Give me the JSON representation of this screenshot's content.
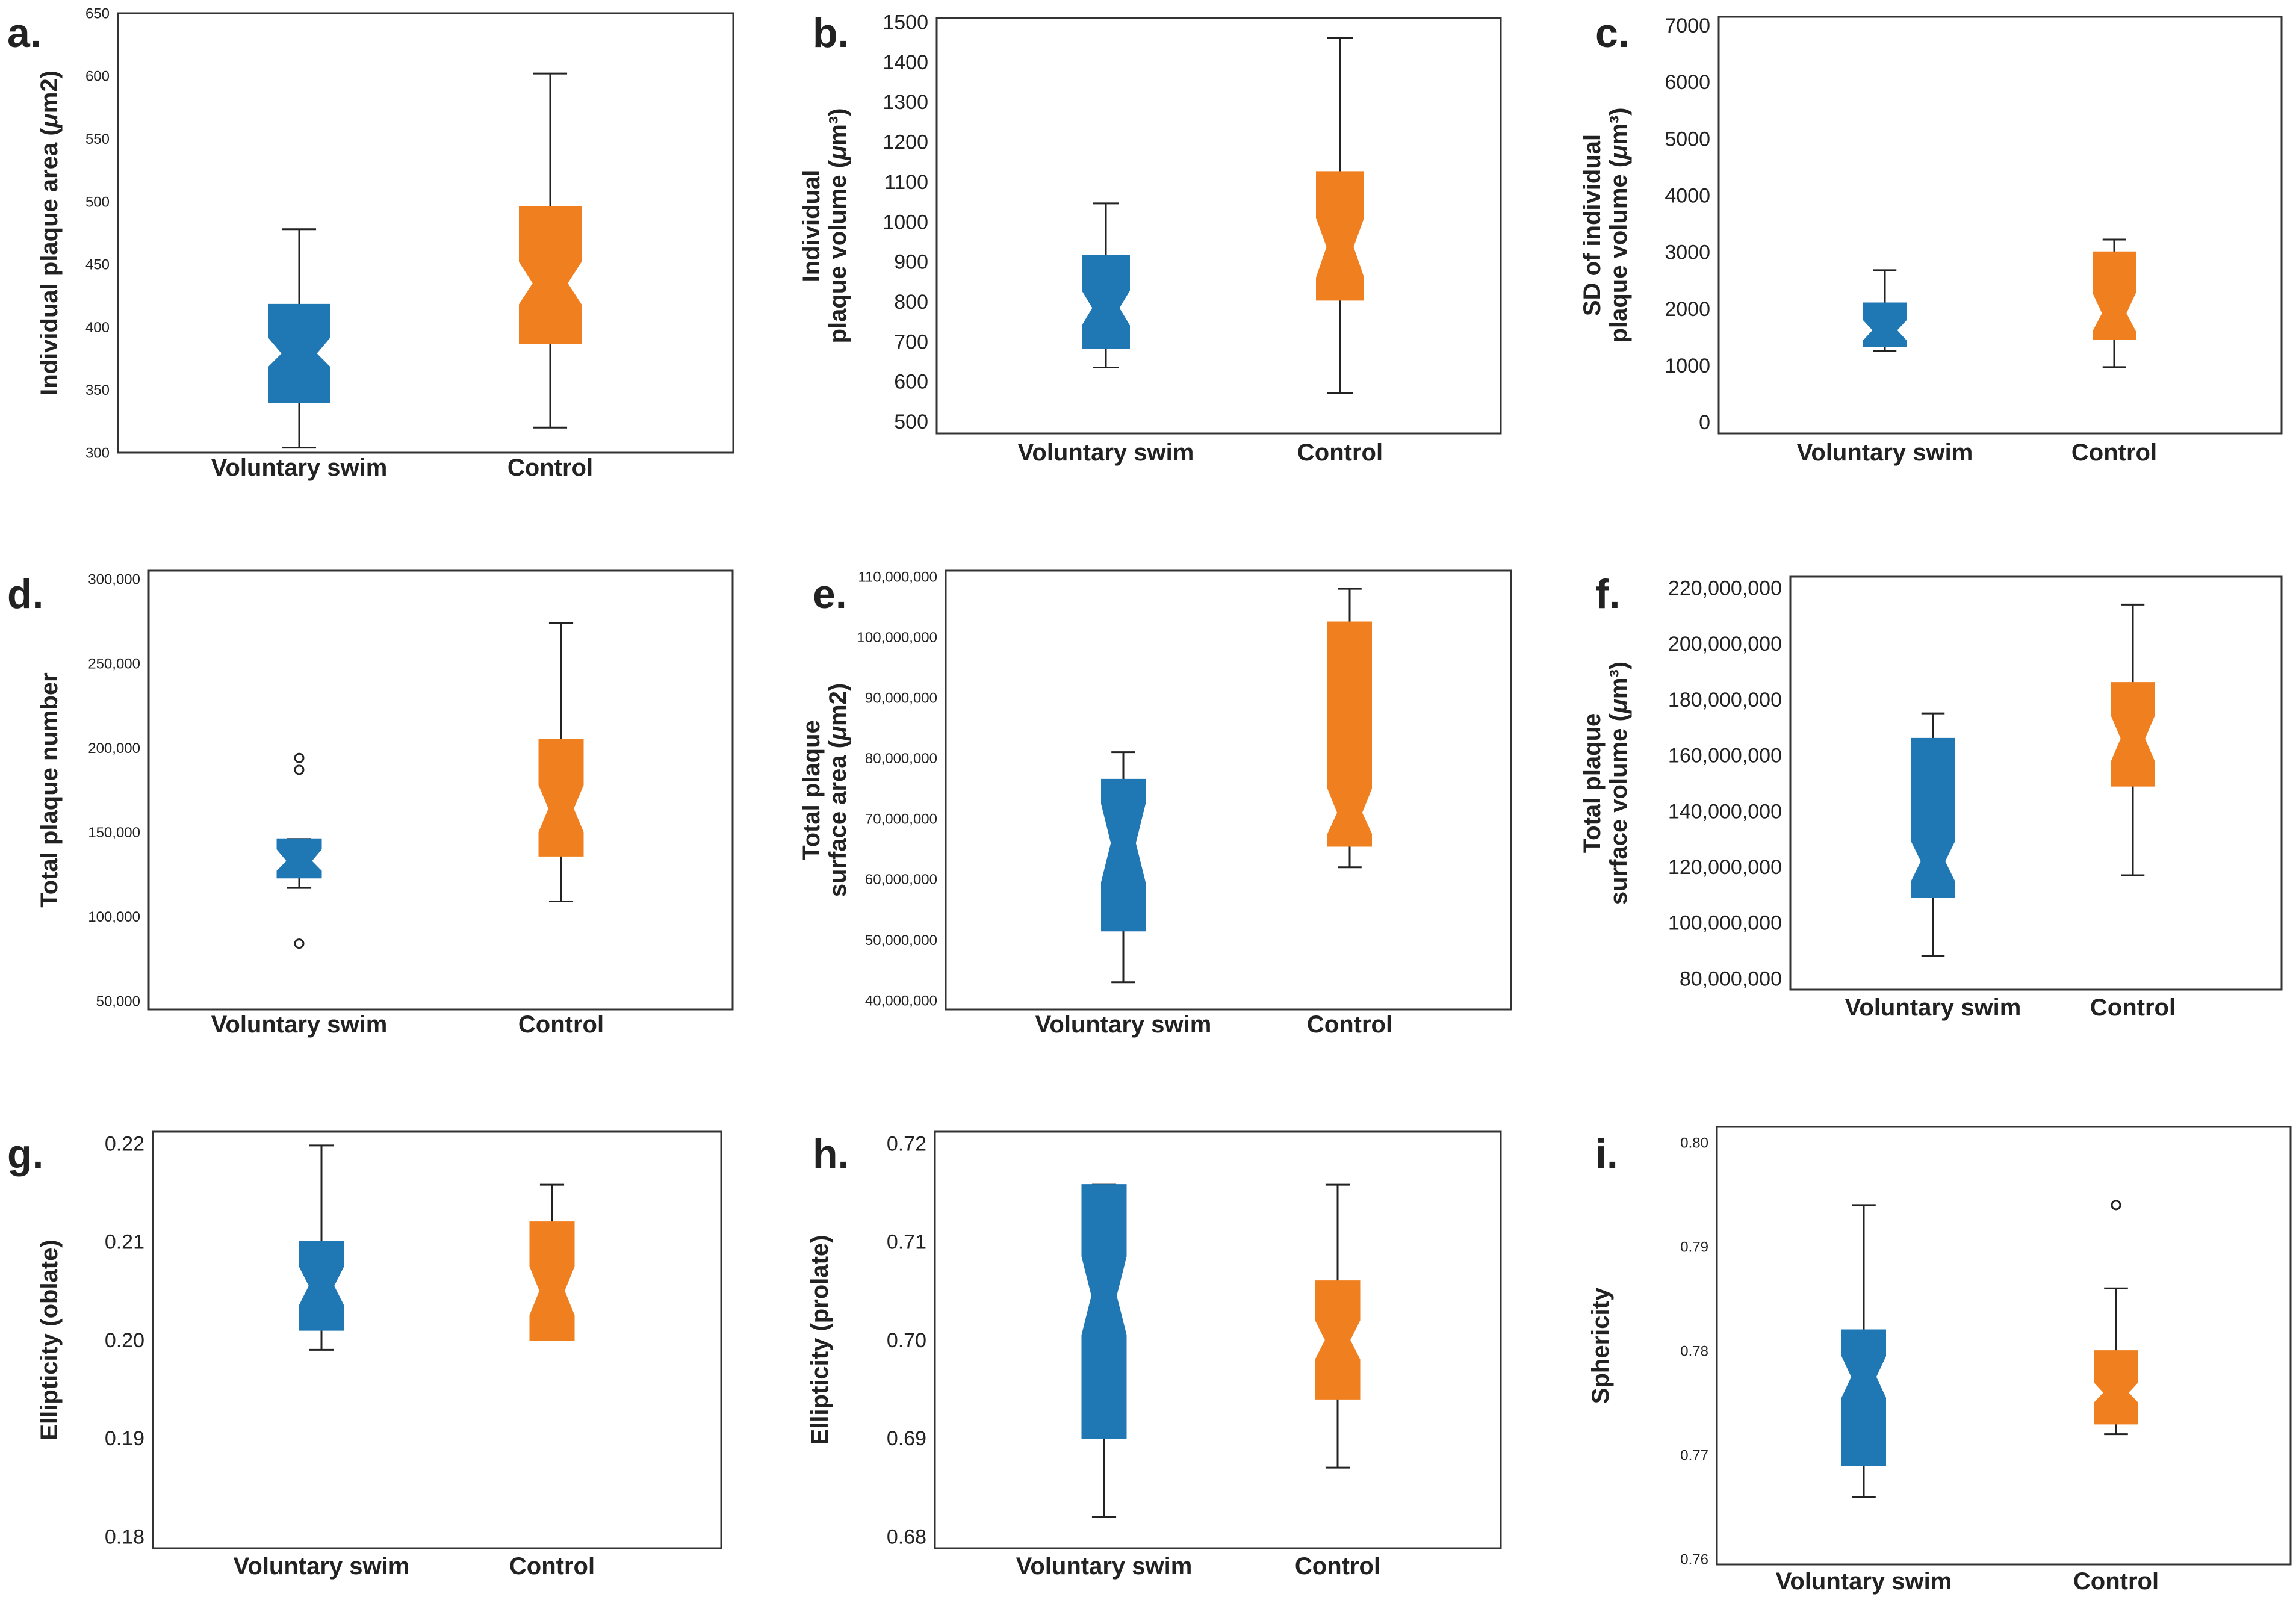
{
  "colors": {
    "voluntary_swim": "#1f77b4",
    "control": "#f07f1f",
    "frame": "#333333",
    "whisker": "#222222"
  },
  "chart_data": [
    {
      "panel": "a.",
      "type": "box",
      "ylabel": "Individual plaque area (μm2)",
      "ylim": [
        300,
        650
      ],
      "yticks": [
        300,
        350,
        400,
        450,
        500,
        550,
        600,
        650
      ],
      "categories": [
        "Voluntary swim",
        "Control"
      ],
      "series": [
        {
          "name": "Voluntary swim",
          "min": 304,
          "q1": 340,
          "median": 379,
          "q3": 418,
          "max": 478,
          "notch_lo": 368,
          "notch_hi": 392,
          "outliers": []
        },
        {
          "name": "Control",
          "min": 320,
          "q1": 387,
          "median": 435,
          "q3": 496,
          "max": 602,
          "notch_lo": 418,
          "notch_hi": 452,
          "outliers": []
        }
      ]
    },
    {
      "panel": "b.",
      "type": "box",
      "ylabel": "Individual plaque volume (μm³)",
      "ylim": [
        470,
        1510
      ],
      "yticks": [
        500,
        600,
        700,
        800,
        900,
        1000,
        1100,
        1200,
        1300,
        1400,
        1500
      ],
      "categories": [
        "Voluntary swim",
        "Control"
      ],
      "series": [
        {
          "name": "Voluntary swim",
          "min": 635,
          "q1": 683,
          "median": 784,
          "q3": 915,
          "max": 1046,
          "notch_lo": 740,
          "notch_hi": 828,
          "outliers": []
        },
        {
          "name": "Control",
          "min": 571,
          "q1": 804,
          "median": 937,
          "q3": 1125,
          "max": 1460,
          "notch_lo": 860,
          "notch_hi": 1010,
          "outliers": []
        }
      ]
    },
    {
      "panel": "c.",
      "type": "box",
      "ylabel": "SD of individual plaque volume (μm³)",
      "ylim": [
        -200,
        7150
      ],
      "yticks": [
        0,
        1000,
        2000,
        3000,
        4000,
        5000,
        6000,
        7000
      ],
      "categories": [
        "Voluntary swim",
        "Control"
      ],
      "series": [
        {
          "name": "Voluntary swim",
          "min": 1250,
          "q1": 1330,
          "median": 1620,
          "q3": 2100,
          "max": 2680,
          "notch_lo": 1440,
          "notch_hi": 1800,
          "outliers": []
        },
        {
          "name": "Control",
          "min": 970,
          "q1": 1460,
          "median": 1920,
          "q3": 3000,
          "max": 3220,
          "notch_lo": 1600,
          "notch_hi": 2280,
          "outliers": []
        }
      ]
    },
    {
      "panel": "d.",
      "type": "box",
      "ylabel": "Total plaque number",
      "ylim": [
        45000,
        305000
      ],
      "yticks": [
        50000,
        100000,
        150000,
        200000,
        250000,
        300000
      ],
      "tick_labels": [
        "50,000",
        "100,000",
        "150,000",
        "200,000",
        "250,000",
        "300,000"
      ],
      "categories": [
        "Voluntary swim",
        "Control"
      ],
      "series": [
        {
          "name": "Voluntary swim",
          "min": 117000,
          "q1": 123000,
          "median": 133000,
          "q3": 146000,
          "max": 146000,
          "notch_lo": 127000,
          "notch_hi": 140000,
          "outliers": [
            84000,
            187000,
            194000
          ]
        },
        {
          "name": "Control",
          "min": 109000,
          "q1": 136000,
          "median": 164000,
          "q3": 205000,
          "max": 274000,
          "notch_lo": 150000,
          "notch_hi": 178000,
          "outliers": []
        }
      ]
    },
    {
      "panel": "e.",
      "type": "box",
      "ylabel": "Total plaque surface area (μm2)",
      "ylim": [
        38500000,
        111000000
      ],
      "yticks": [
        40000000,
        50000000,
        60000000,
        70000000,
        80000000,
        90000000,
        100000000,
        110000000
      ],
      "tick_labels": [
        "40,000,000",
        "50,000,000",
        "60,000,000",
        "70,000,000",
        "80,000,000",
        "90,000,000",
        "100,000,000",
        "110,000,000"
      ],
      "categories": [
        "Voluntary swim",
        "Control"
      ],
      "series": [
        {
          "name": "Voluntary swim",
          "min": 43000000,
          "q1": 51500000,
          "median": 66000000,
          "q3": 76500000,
          "max": 81000000,
          "notch_lo": 59500000,
          "notch_hi": 72500000,
          "outliers": []
        },
        {
          "name": "Control",
          "min": 62000000,
          "q1": 65500000,
          "median": 71000000,
          "q3": 102500000,
          "max": 108000000,
          "notch_lo": 67500000,
          "notch_hi": 75000000,
          "outliers": []
        }
      ]
    },
    {
      "panel": "f.",
      "type": "box",
      "ylabel": "Total plaque surface volume (μm³)",
      "ylim": [
        76000000,
        224000000
      ],
      "yticks": [
        80000000,
        100000000,
        120000000,
        140000000,
        160000000,
        180000000,
        200000000,
        220000000
      ],
      "tick_labels": [
        "80,000,000",
        "100,000,000",
        "120,000,000",
        "140,000,000",
        "160,000,000",
        "180,000,000",
        "200,000,000",
        "220,000,000"
      ],
      "categories": [
        "Voluntary swim",
        "Control"
      ],
      "series": [
        {
          "name": "Voluntary swim",
          "min": 88000000,
          "q1": 109000000,
          "median": 122000000,
          "q3": 166000000,
          "max": 175000000,
          "notch_lo": 115000000,
          "notch_hi": 129000000,
          "outliers": []
        },
        {
          "name": "Control",
          "min": 117000000,
          "q1": 149000000,
          "median": 166000000,
          "q3": 186000000,
          "max": 214000000,
          "notch_lo": 158000000,
          "notch_hi": 174000000,
          "outliers": []
        }
      ]
    },
    {
      "panel": "g.",
      "type": "box",
      "ylabel": "Ellipticity (oblate)",
      "ylim": [
        0.1788,
        0.2212
      ],
      "yticks": [
        0.18,
        0.19,
        0.2,
        0.21,
        0.22
      ],
      "tick_labels": [
        "0.18",
        "0.19",
        "0.20",
        "0.21",
        "0.22"
      ],
      "categories": [
        "Voluntary swim",
        "Control"
      ],
      "series": [
        {
          "name": "Voluntary swim",
          "min": 0.199,
          "q1": 0.201,
          "median": 0.2055,
          "q3": 0.21,
          "max": 0.2198,
          "notch_lo": 0.2035,
          "notch_hi": 0.2075,
          "outliers": []
        },
        {
          "name": "Control",
          "min": 0.2,
          "q1": 0.2,
          "median": 0.205,
          "q3": 0.212,
          "max": 0.2158,
          "notch_lo": 0.2025,
          "notch_hi": 0.2075,
          "outliers": []
        }
      ]
    },
    {
      "panel": "h.",
      "type": "box",
      "ylabel": "Ellipticity (prolate)",
      "ylim": [
        0.6788,
        0.7212
      ],
      "yticks": [
        0.68,
        0.69,
        0.7,
        0.71,
        0.72
      ],
      "tick_labels": [
        "0.68",
        "0.69",
        "0.70",
        "0.71",
        "0.72"
      ],
      "categories": [
        "Voluntary swim",
        "Control"
      ],
      "series": [
        {
          "name": "Voluntary swim",
          "min": 0.682,
          "q1": 0.69,
          "median": 0.7045,
          "q3": 0.7158,
          "max": 0.7158,
          "notch_lo": 0.7005,
          "notch_hi": 0.7085,
          "outliers": []
        },
        {
          "name": "Control",
          "min": 0.687,
          "q1": 0.694,
          "median": 0.7,
          "q3": 0.706,
          "max": 0.7158,
          "notch_lo": 0.698,
          "notch_hi": 0.702,
          "outliers": []
        }
      ]
    },
    {
      "panel": "i.",
      "type": "box",
      "ylabel": "Sphericity",
      "ylim": [
        0.7595,
        0.8015
      ],
      "yticks": [
        0.76,
        0.77,
        0.78,
        0.79,
        0.8
      ],
      "tick_labels": [
        "0.76",
        "0.77",
        "0.78",
        "0.79",
        "0.80"
      ],
      "categories": [
        "Voluntary swim",
        "Control"
      ],
      "series": [
        {
          "name": "Voluntary swim",
          "min": 0.766,
          "q1": 0.769,
          "median": 0.7775,
          "q3": 0.782,
          "max": 0.794,
          "notch_lo": 0.7755,
          "notch_hi": 0.7795,
          "outliers": []
        },
        {
          "name": "Control",
          "min": 0.772,
          "q1": 0.773,
          "median": 0.776,
          "q3": 0.78,
          "max": 0.786,
          "notch_lo": 0.775,
          "notch_hi": 0.777,
          "outliers": [
            0.794
          ]
        }
      ]
    }
  ]
}
